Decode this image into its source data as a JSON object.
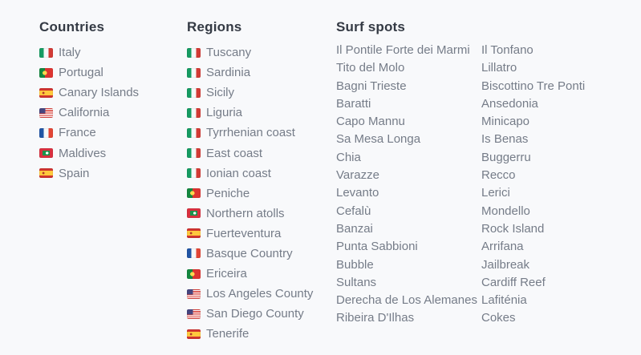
{
  "colors": {
    "background": "#f8f9fb",
    "heading_text": "#343a44",
    "item_text": "#757c88",
    "flag_red": "#d23a35",
    "flag_green": "#169b62",
    "flag_yellow": "#ffc83d",
    "flag_blue": "#2155a4"
  },
  "columns": {
    "countries": {
      "title": "Countries",
      "items": [
        {
          "label": "Italy",
          "flag": "italy"
        },
        {
          "label": "Portugal",
          "flag": "portugal"
        },
        {
          "label": "Canary Islands",
          "flag": "spain"
        },
        {
          "label": "California",
          "flag": "usa"
        },
        {
          "label": "France",
          "flag": "france"
        },
        {
          "label": "Maldives",
          "flag": "maldives"
        },
        {
          "label": "Spain",
          "flag": "spain"
        }
      ]
    },
    "regions": {
      "title": "Regions",
      "items": [
        {
          "label": "Tuscany",
          "flag": "italy"
        },
        {
          "label": "Sardinia",
          "flag": "italy"
        },
        {
          "label": "Sicily",
          "flag": "italy"
        },
        {
          "label": "Liguria",
          "flag": "italy"
        },
        {
          "label": "Tyrrhenian coast",
          "flag": "italy"
        },
        {
          "label": "East coast",
          "flag": "italy"
        },
        {
          "label": "Ionian coast",
          "flag": "italy"
        },
        {
          "label": "Peniche",
          "flag": "portugal"
        },
        {
          "label": "Northern atolls",
          "flag": "maldives"
        },
        {
          "label": "Fuerteventura",
          "flag": "spain"
        },
        {
          "label": "Basque Country",
          "flag": "france"
        },
        {
          "label": "Ericeira",
          "flag": "portugal"
        },
        {
          "label": "Los Angeles County",
          "flag": "usa"
        },
        {
          "label": "San Diego County",
          "flag": "usa"
        },
        {
          "label": "Tenerife",
          "flag": "spain"
        }
      ]
    },
    "surf_spots": {
      "title": "Surf spots",
      "col1": [
        "Il Pontile Forte dei Marmi",
        "Tito del Molo",
        "Bagni Trieste",
        "Baratti",
        "Capo Mannu",
        "Sa Mesa Longa",
        "Chia",
        "Varazze",
        "Levanto",
        "Cefalù",
        "Banzai",
        "Punta Sabbioni",
        "Bubble",
        "Sultans",
        "Derecha de Los Alemanes",
        "Ribeira D'Ilhas"
      ],
      "col2": [
        "Il Tonfano",
        "Lillatro",
        "Biscottino Tre Ponti",
        "Ansedonia",
        "Minicapo",
        "Is Benas",
        "Buggerru",
        "Recco",
        "Lerici",
        "Mondello",
        "Rock Island",
        "Arrifana",
        "Jailbreak",
        "Cardiff Reef",
        "Lafiténia",
        "Cokes"
      ]
    }
  }
}
